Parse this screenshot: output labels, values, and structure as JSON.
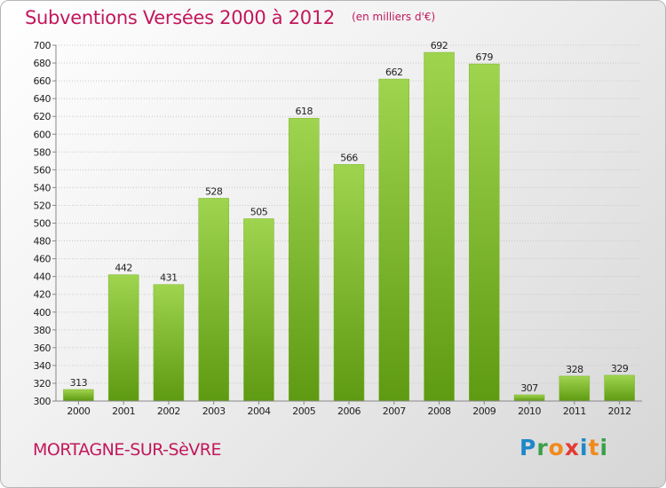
{
  "title": "Subventions Versées 2000 à 2012",
  "subtitle": "(en milliers d'€)",
  "commune": "MORTAGNE-SUR-SèVRE",
  "brand": "Proxiti",
  "colors": {
    "title": "#c2185b",
    "bar_light": "#9fd44f",
    "bar_dark": "#5e9a12",
    "grid": "#c8c8c8",
    "axis_text": "#222222"
  },
  "chart_data": {
    "type": "bar",
    "categories": [
      "2000",
      "2001",
      "2002",
      "2003",
      "2004",
      "2005",
      "2006",
      "2007",
      "2008",
      "2009",
      "2010",
      "2011",
      "2012"
    ],
    "values": [
      313,
      442,
      431,
      528,
      505,
      618,
      566,
      662,
      692,
      679,
      307,
      328,
      329
    ],
    "title": "Subventions Versées 2000 à 2012",
    "subtitle": "(en milliers d'€)",
    "xlabel": "",
    "ylabel": "",
    "ylim": [
      300,
      700
    ],
    "ytick_step": 20,
    "grid": true,
    "legend": "none"
  }
}
